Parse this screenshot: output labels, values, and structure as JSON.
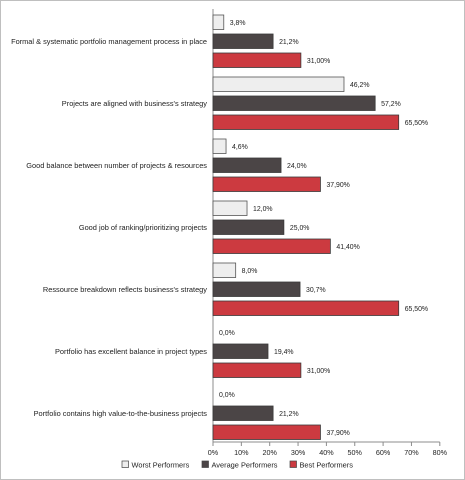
{
  "chart_data": {
    "type": "bar",
    "orientation": "horizontal",
    "categories": [
      "Formal & systematic portfolio management process in place",
      "Projects are aligned with business's strategy",
      "Good balance between number of projects & resources",
      "Good job of ranking/prioritizing projects",
      "Ressource breakdown reflects business's strategy",
      "Portfolio has excellent balance in project types",
      "Portfolio contains high value-to-the-business projects"
    ],
    "series": [
      {
        "name": "Worst Performers",
        "color": "#eeeeee",
        "values": [
          3.8,
          46.2,
          4.6,
          12.0,
          8.0,
          0.0,
          0.0
        ],
        "labels": [
          "3,8%",
          "46,2%",
          "4,6%",
          "12,0%",
          "8,0%",
          "0,0%",
          "0,0%"
        ]
      },
      {
        "name": "Average Performers",
        "color": "#4b4546",
        "values": [
          21.2,
          57.2,
          24.0,
          25.0,
          30.7,
          19.4,
          21.2
        ],
        "labels": [
          "21,2%",
          "57,2%",
          "24,0%",
          "25,0%",
          "30,7%",
          "19,4%",
          "21,2%"
        ]
      },
      {
        "name": "Best Performers",
        "color": "#cc3a40",
        "values": [
          31.0,
          65.5,
          37.9,
          41.4,
          65.5,
          31.0,
          37.9
        ],
        "labels": [
          "31,00%",
          "65,50%",
          "37,90%",
          "41,40%",
          "65,50%",
          "31,00%",
          "37,90%"
        ]
      }
    ],
    "xlim": [
      0,
      80
    ],
    "xticks": [
      "0%",
      "10%",
      "20%",
      "30%",
      "40%",
      "50%",
      "60%",
      "70%",
      "80%"
    ],
    "grid": false,
    "legend_position": "bottom"
  }
}
